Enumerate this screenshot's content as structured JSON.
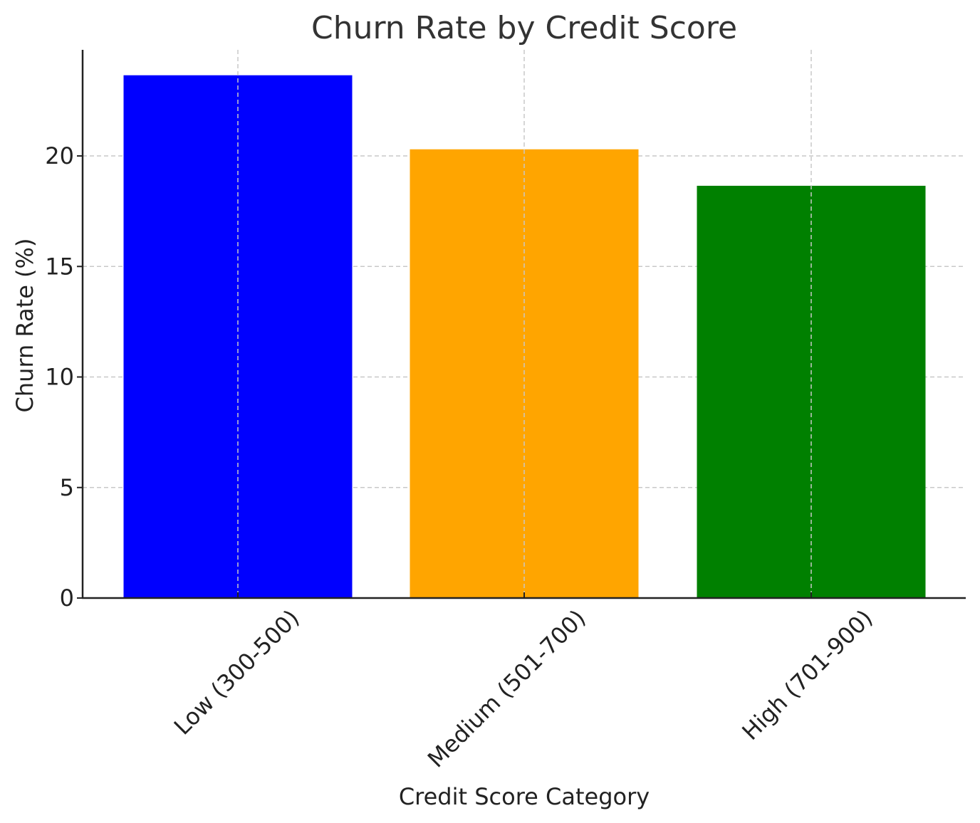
{
  "chart_data": {
    "type": "bar",
    "title": "Churn Rate by Credit Score",
    "xlabel": "Credit Score Category",
    "ylabel": "Churn Rate (%)",
    "categories": [
      "Low (300-500)",
      "Medium (501-700)",
      "High (701-900)"
    ],
    "values": [
      23.65,
      20.3,
      18.65
    ],
    "colors": [
      "#0000ff",
      "#ffa500",
      "#008000"
    ],
    "ylim": [
      0,
      24.8
    ],
    "yticks": [
      0,
      5,
      10,
      15,
      20
    ],
    "grid": true,
    "grid_style": "dashed"
  }
}
